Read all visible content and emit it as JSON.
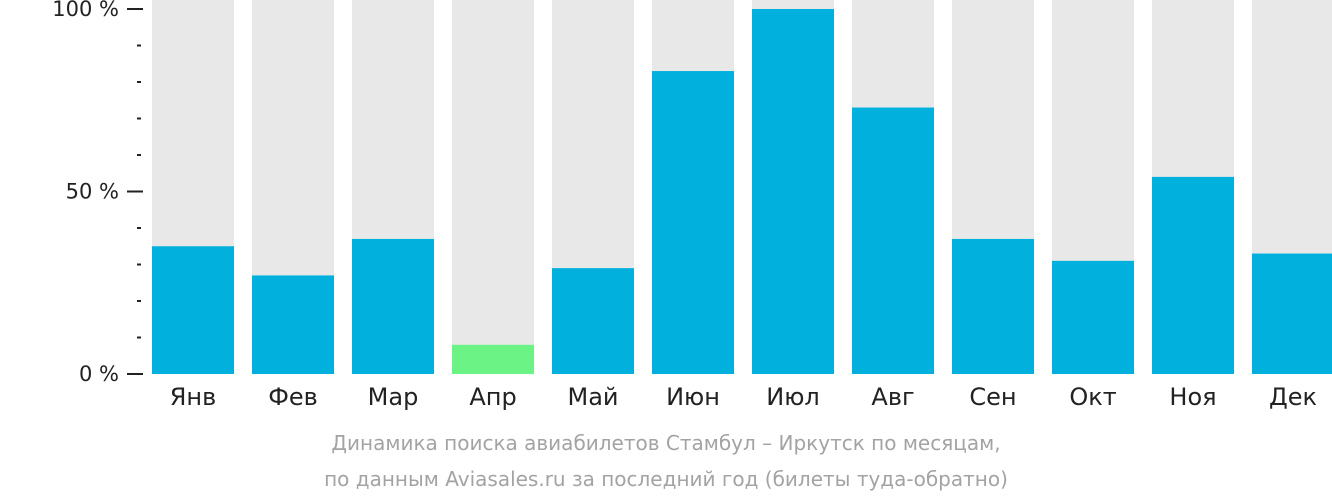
{
  "chart_data": {
    "type": "bar",
    "title": "",
    "xlabel": "",
    "ylabel": "",
    "ylim": [
      0,
      100
    ],
    "y_ticks": [
      {
        "value": 100,
        "label": "100 %"
      },
      {
        "value": 50,
        "label": "50 %"
      },
      {
        "value": 0,
        "label": "0 %"
      }
    ],
    "y_minor_step": 10,
    "categories": [
      "Янв",
      "Фев",
      "Мар",
      "Апр",
      "Май",
      "Июн",
      "Июл",
      "Авг",
      "Сен",
      "Окт",
      "Ноя",
      "Дек"
    ],
    "values": [
      35,
      27,
      37,
      8,
      29,
      83,
      100,
      73,
      37,
      31,
      54,
      33
    ],
    "highlight_category": "Апр",
    "colors": {
      "bar": "#01b0dd",
      "highlight": "#6cf385",
      "track": "#e8e8e8",
      "axis": "#222222"
    },
    "grid": false,
    "legend": "none"
  },
  "caption": {
    "line1": "Динамика поиска авиабилетов Стамбул – Иркутск по месяцам,",
    "line2": "по данным Aviasales.ru за последний год (билеты туда-обратно)"
  }
}
